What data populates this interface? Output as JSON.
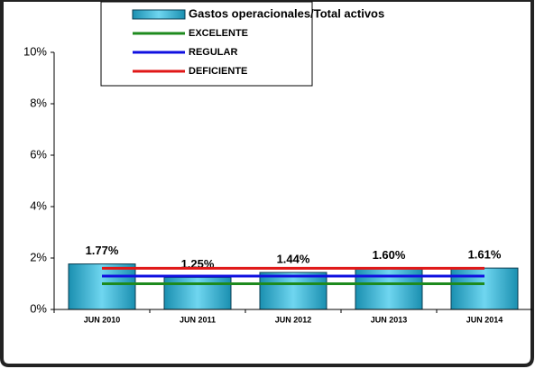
{
  "chart_data": {
    "type": "bar",
    "categories": [
      "JUN 2010",
      "JUN 2011",
      "JUN 2012",
      "JUN 2013",
      "JUN 2014"
    ],
    "series": [
      {
        "name": "Gastos operacionales/Total activos",
        "type": "bar",
        "color": "#33bbdd",
        "values": [
          1.77,
          1.25,
          1.44,
          1.6,
          1.61
        ],
        "value_labels": [
          "1.77%",
          "1.25%",
          "1.44%",
          "1.60%",
          "1.61%"
        ]
      },
      {
        "name": "EXCELENTE",
        "type": "line",
        "color": "#1e8a1e",
        "values": [
          1.0,
          1.0,
          1.0,
          1.0,
          1.0
        ]
      },
      {
        "name": "REGULAR",
        "type": "line",
        "color": "#1010e0",
        "values": [
          1.3,
          1.3,
          1.3,
          1.3,
          1.3
        ]
      },
      {
        "name": "DEFICIENTE",
        "type": "line",
        "color": "#e01818",
        "values": [
          1.6,
          1.6,
          1.6,
          1.6,
          1.6
        ]
      }
    ],
    "ylim": [
      0,
      10
    ],
    "yticks": [
      {
        "value": 0,
        "label": "0%"
      },
      {
        "value": 2,
        "label": "2%"
      },
      {
        "value": 4,
        "label": "4%"
      },
      {
        "value": 6,
        "label": "6%"
      },
      {
        "value": 8,
        "label": "8%"
      },
      {
        "value": 10,
        "label": "10%"
      }
    ],
    "legend": "top"
  }
}
